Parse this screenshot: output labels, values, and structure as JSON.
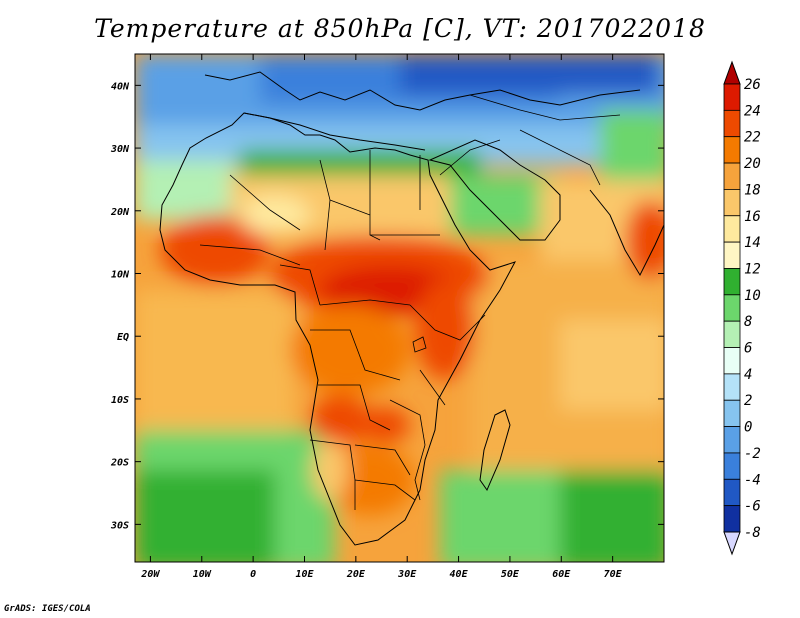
{
  "title": "Temperature at 850hPa [C], VT: 2017022018",
  "credit": "GrADS: IGES/COLA",
  "map": {
    "lon_range": [
      -23,
      80
    ],
    "lat_range": [
      -36,
      45
    ],
    "x_tick_labels": [
      "20W",
      "10W",
      "0",
      "10E",
      "20E",
      "30E",
      "40E",
      "50E",
      "60E",
      "70E"
    ],
    "x_tick_lons": [
      -20,
      -10,
      0,
      10,
      20,
      30,
      40,
      50,
      60,
      70
    ],
    "y_tick_labels": [
      "40N",
      "30N",
      "20N",
      "10N",
      "EQ",
      "10S",
      "20S",
      "30S"
    ],
    "y_tick_lats": [
      40,
      30,
      20,
      10,
      0,
      -10,
      -20,
      -30
    ]
  },
  "colorbar": {
    "labels": [
      "26",
      "24",
      "22",
      "20",
      "18",
      "16",
      "14",
      "12",
      "10",
      "8",
      "6",
      "4",
      "2",
      "0",
      "-2",
      "-4",
      "-6",
      "-8"
    ],
    "colors": [
      "#b00000",
      "#dd1a00",
      "#ee4a00",
      "#f47a00",
      "#f6a33c",
      "#fac76a",
      "#fee99e",
      "#fff6c4",
      "#30b030",
      "#6cd66c",
      "#b4f0b4",
      "#e8fff6",
      "#b4e2f8",
      "#86c4ef",
      "#5aa0e6",
      "#3a80dc",
      "#2058c4",
      "#1030a0",
      "#0a147a"
    ]
  }
}
